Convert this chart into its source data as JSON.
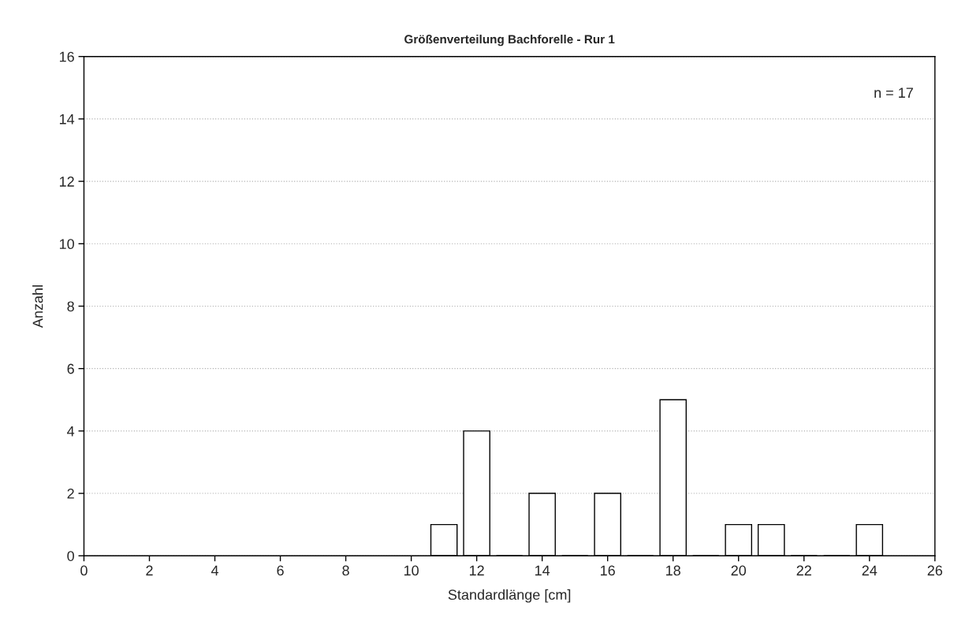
{
  "chart_data": {
    "type": "bar",
    "title": "Größenverteilung Bachforelle - Rur 1",
    "xlabel": "Standardlänge [cm]",
    "ylabel": "Anzahl",
    "x": [
      11,
      12,
      13,
      14,
      15,
      16,
      17,
      18,
      19,
      20,
      21,
      22,
      23,
      24
    ],
    "values": [
      1,
      4,
      0,
      2,
      0,
      2,
      0,
      5,
      0,
      1,
      1,
      0,
      0,
      1
    ],
    "color": "#ffffff",
    "xlim": [
      0,
      26
    ],
    "xticks": [
      0,
      2,
      4,
      6,
      8,
      10,
      12,
      14,
      16,
      18,
      20,
      22,
      24,
      26
    ],
    "ylim": [
      0,
      16
    ],
    "yticks": [
      0,
      2,
      4,
      6,
      8,
      10,
      12,
      14,
      16
    ],
    "grid": "y",
    "annotations": [
      "n = 17"
    ]
  }
}
